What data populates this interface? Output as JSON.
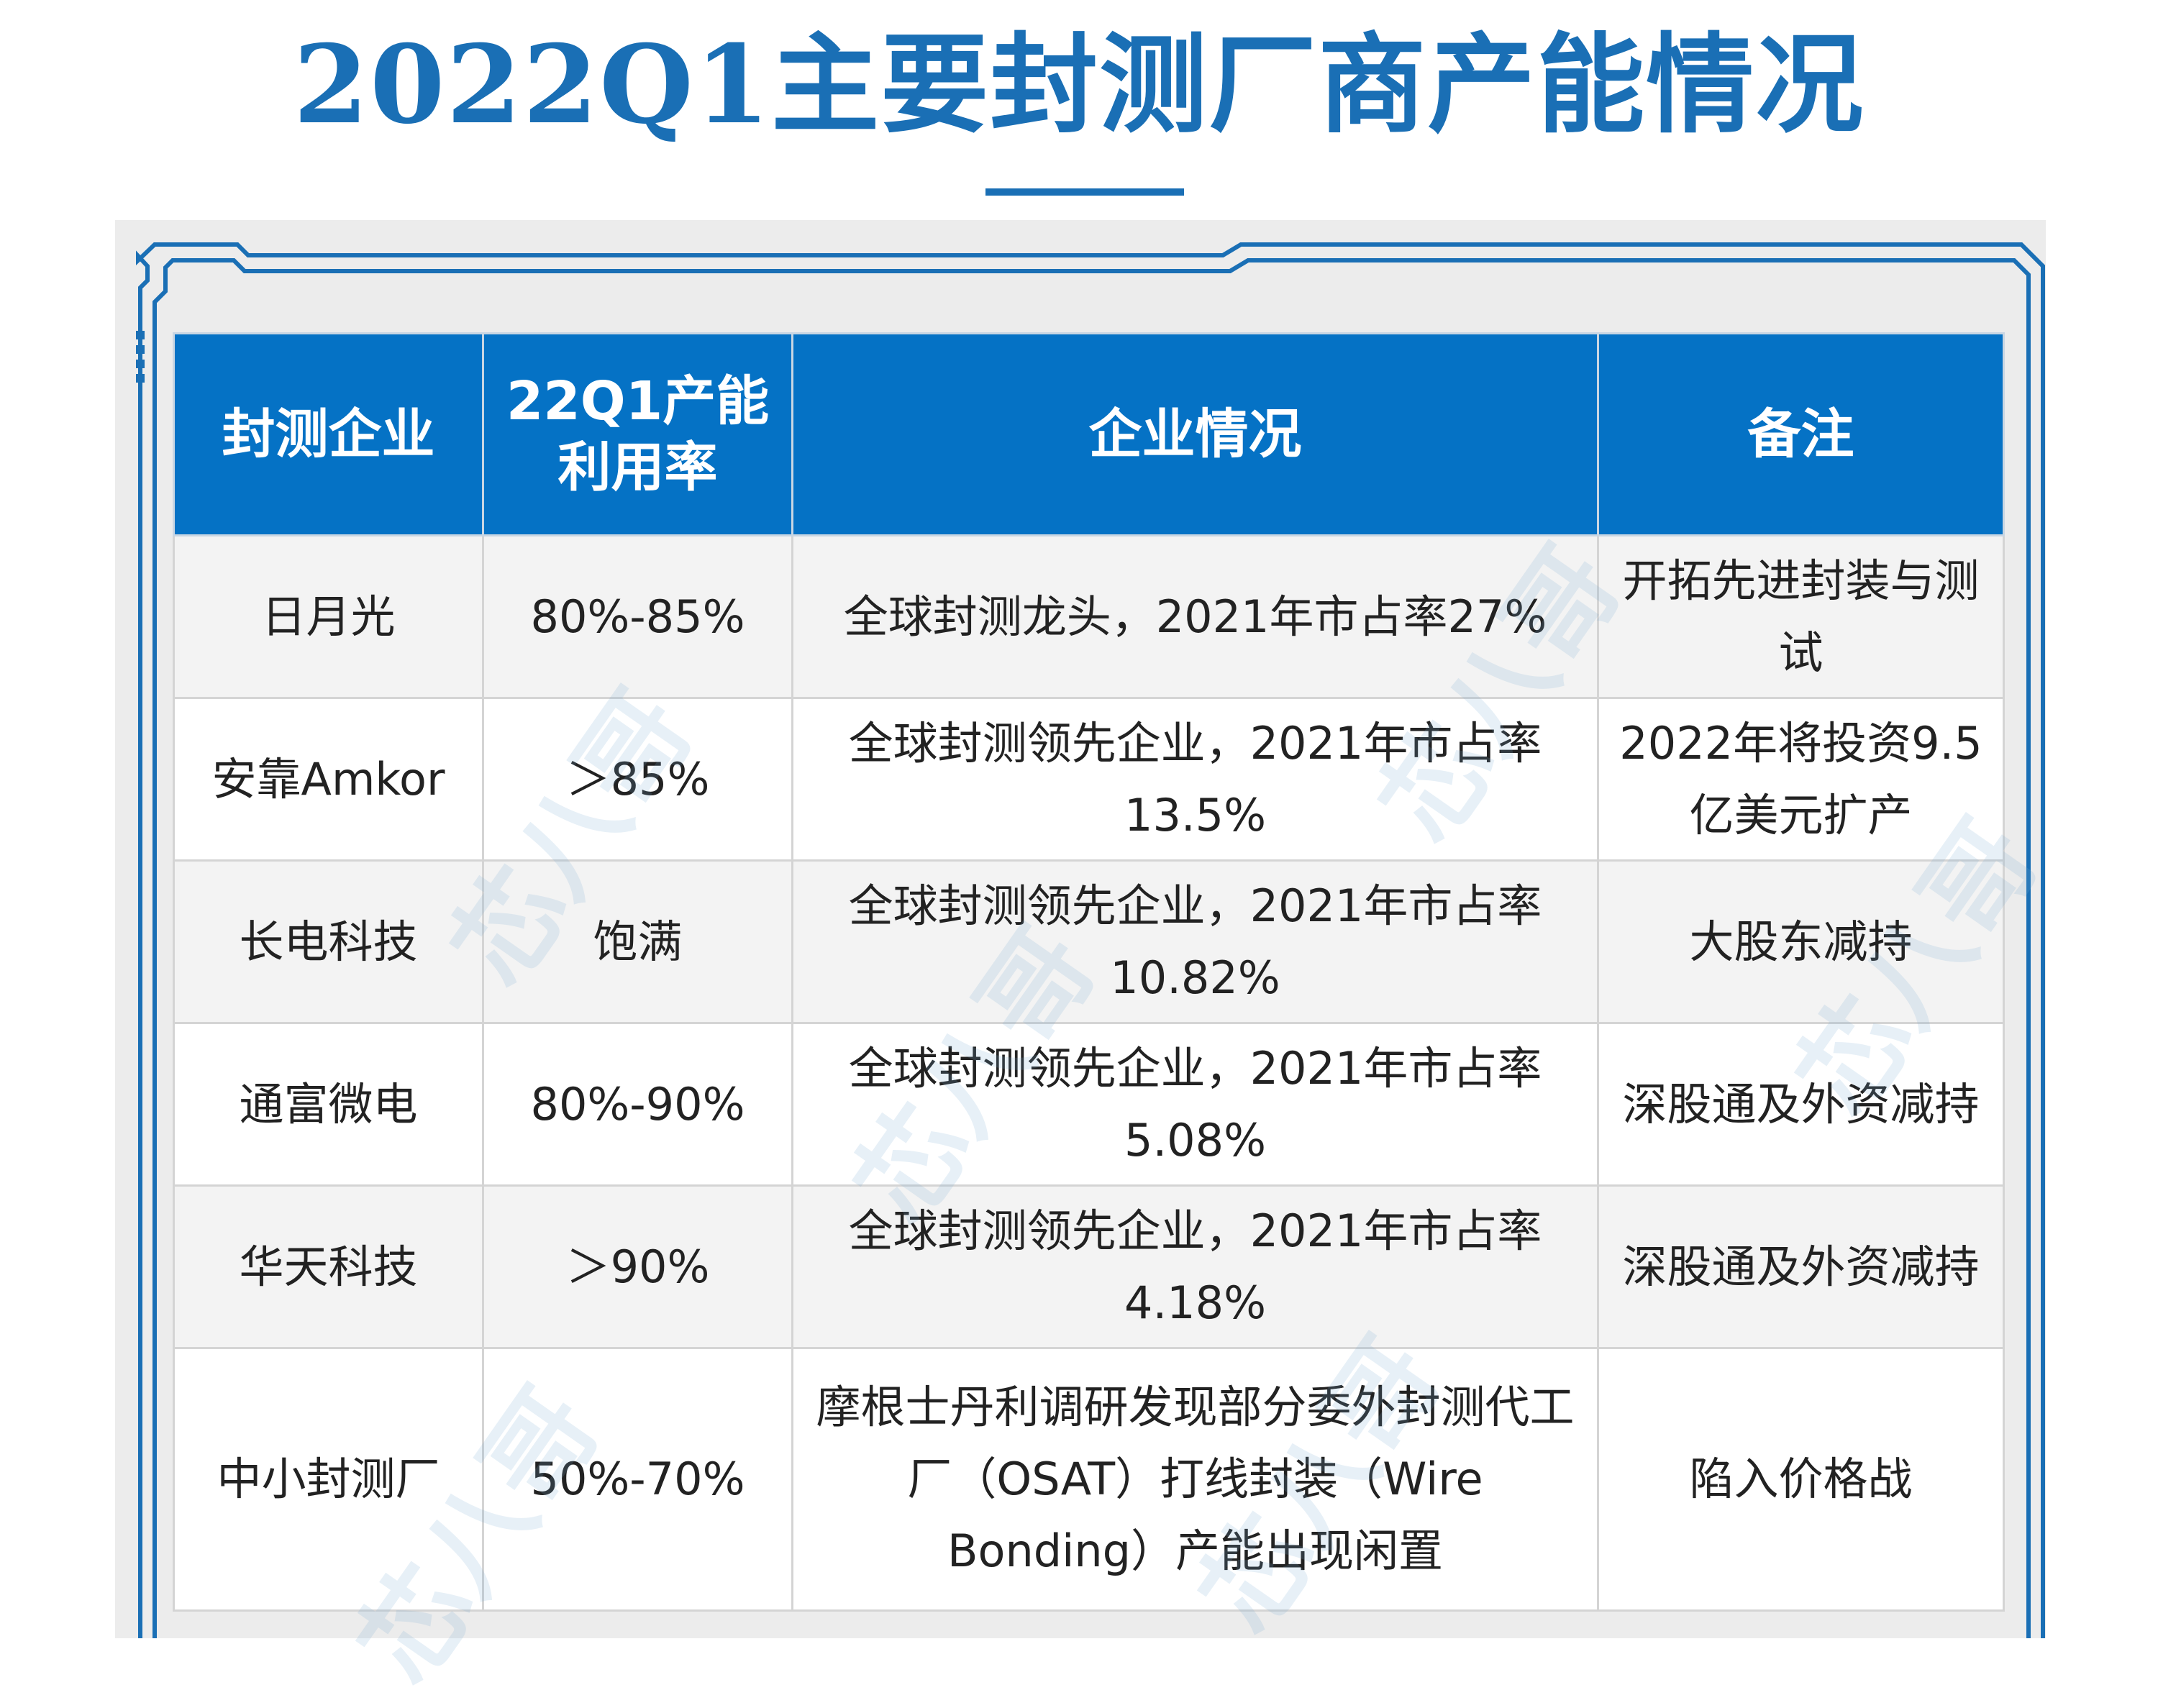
{
  "title": "2022Q1主要封测厂商产能情况",
  "table": {
    "headers": {
      "company": "封测企业",
      "utilization_line1": "22Q1产能",
      "utilization_line2": "利用率",
      "situation": "企业情况",
      "remark": "备注"
    },
    "rows": [
      {
        "company": "日月光",
        "utilization": "80%-85%",
        "situation": "全球封测龙头，2021年市占率27%",
        "remark": "开拓先进封装与测试"
      },
      {
        "company": "安靠Amkor",
        "utilization": "＞85%",
        "situation": "全球封测领先企业，2021年市占率13.5%",
        "remark": "2022年将投资9.5亿美元扩产"
      },
      {
        "company": "长电科技",
        "utilization": "饱满",
        "situation": "全球封测领先企业，2021年市占率10.82%",
        "remark": "大股东减持"
      },
      {
        "company": "通富微电",
        "utilization": "80%-90%",
        "situation": "全球封测领先企业，2021年市占率5.08%",
        "remark": "深股通及外资减持"
      },
      {
        "company": "华天科技",
        "utilization": "＞90%",
        "situation": "全球封测领先企业，2021年市占率4.18%",
        "remark": "深股通及外资减持"
      },
      {
        "company": "中小封测厂",
        "utilization": "50%-70%",
        "situation": "摩根士丹利调研发现部分委外封测代工厂（OSAT）打线封装（Wire Bonding）产能出现闲置",
        "remark": "陷入价格战"
      }
    ]
  },
  "watermark": {
    "text": "芯八哥"
  },
  "colors": {
    "title": "#1a6fb5",
    "header_bg": "#0572c5",
    "frame": "#1a6fb5"
  }
}
